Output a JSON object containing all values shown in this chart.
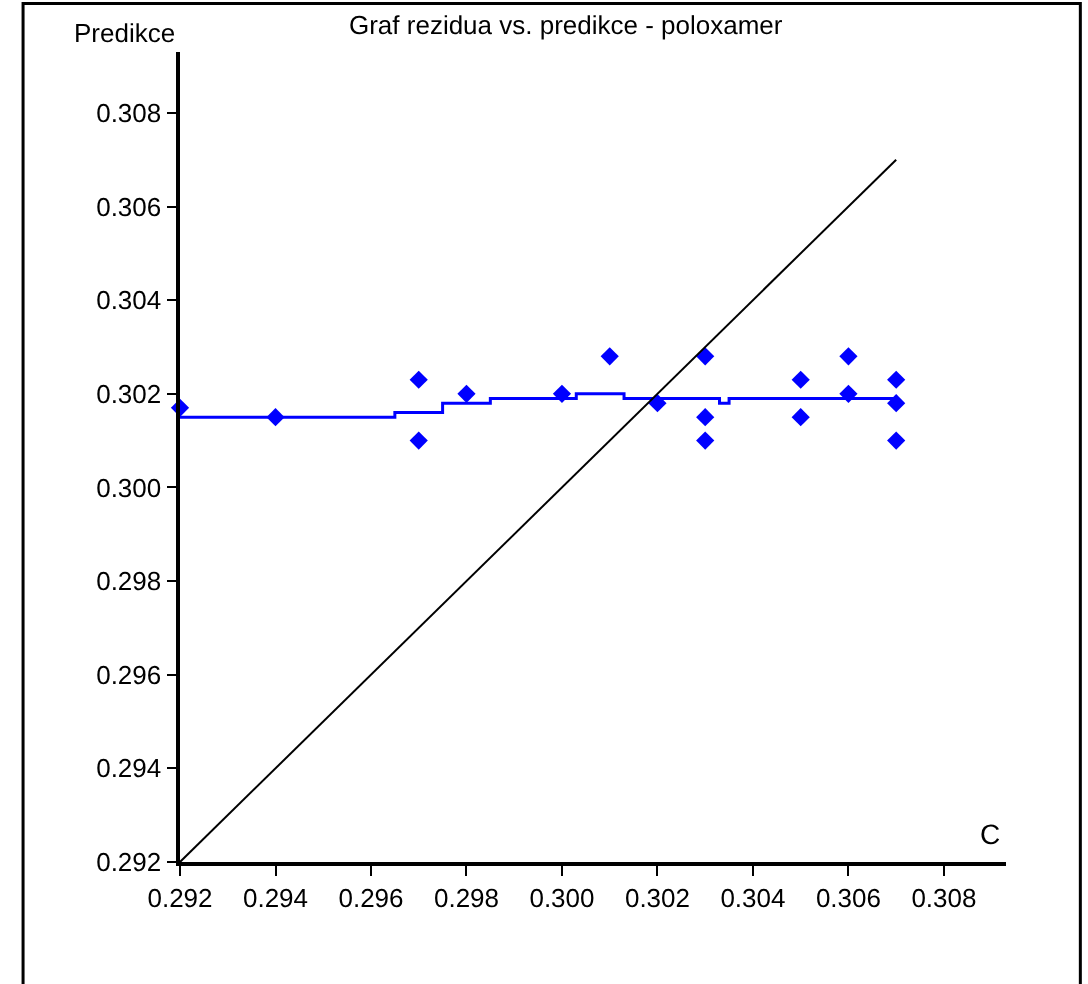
{
  "chart_data": {
    "type": "scatter",
    "title": "Graf rezidua vs. predikce - poloxamer",
    "xlabel": "C",
    "ylabel": "Predikce",
    "xlim": [
      0.292,
      0.3093
    ],
    "ylim": [
      0.292,
      0.3093
    ],
    "xticks": [
      {
        "value": 0.292,
        "label": "0.292"
      },
      {
        "value": 0.294,
        "label": "0.294"
      },
      {
        "value": 0.296,
        "label": "0.296"
      },
      {
        "value": 0.298,
        "label": "0.298"
      },
      {
        "value": 0.3,
        "label": "0.300"
      },
      {
        "value": 0.302,
        "label": "0.302"
      },
      {
        "value": 0.304,
        "label": "0.304"
      },
      {
        "value": 0.306,
        "label": "0.306"
      },
      {
        "value": 0.308,
        "label": "0.308"
      }
    ],
    "yticks": [
      {
        "value": 0.292,
        "label": "0.292"
      },
      {
        "value": 0.294,
        "label": "0.294"
      },
      {
        "value": 0.296,
        "label": "0.296"
      },
      {
        "value": 0.298,
        "label": "0.298"
      },
      {
        "value": 0.3,
        "label": "0.300"
      },
      {
        "value": 0.302,
        "label": "0.302"
      },
      {
        "value": 0.304,
        "label": "0.304"
      },
      {
        "value": 0.306,
        "label": "0.306"
      },
      {
        "value": 0.308,
        "label": "0.308"
      }
    ],
    "series": [
      {
        "marker": "diamond",
        "color": "#0000ff",
        "x": [
          0.292,
          0.294,
          0.297,
          0.297,
          0.298,
          0.3,
          0.301,
          0.302,
          0.303,
          0.303,
          0.303,
          0.305,
          0.305,
          0.306,
          0.306,
          0.307,
          0.307,
          0.307
        ],
        "values": [
          0.3017,
          0.3015,
          0.3023,
          0.301,
          0.302,
          0.302,
          0.3028,
          0.3018,
          0.3028,
          0.3015,
          0.301,
          0.3023,
          0.3015,
          0.3028,
          0.302,
          0.3023,
          0.3018,
          0.301
        ]
      },
      {
        "type": "line",
        "marker": "none",
        "color": "#0000ff",
        "x": [
          0.292,
          0.2965,
          0.2965,
          0.2975,
          0.2975,
          0.2985,
          0.2985,
          0.3003,
          0.3003,
          0.3013,
          0.3013,
          0.3033,
          0.3033,
          0.3035,
          0.3035,
          0.307
        ],
        "values": [
          0.3015,
          0.3015,
          0.3016,
          0.3016,
          0.3018,
          0.3018,
          0.3019,
          0.3019,
          0.302,
          0.302,
          0.3019,
          0.3019,
          0.3018,
          0.3018,
          0.3019,
          0.3019
        ]
      },
      {
        "type": "line",
        "marker": "none",
        "color": "#000000",
        "x": [
          0.292,
          0.307
        ],
        "values": [
          0.292,
          0.307
        ]
      }
    ]
  }
}
